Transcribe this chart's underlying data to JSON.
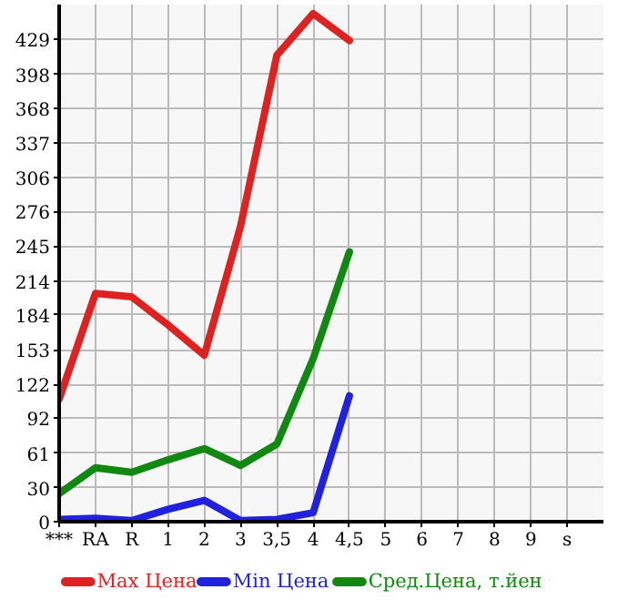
{
  "chart_data": {
    "type": "line",
    "categories": [
      "***",
      "RA",
      "R",
      "1",
      "2",
      "3",
      "3,5",
      "4",
      "4,5",
      "5",
      "6",
      "7",
      "8",
      "9",
      "s"
    ],
    "ylim": [
      0,
      460
    ],
    "yticks": [
      0,
      30,
      61,
      92,
      122,
      153,
      184,
      214,
      245,
      276,
      306,
      337,
      368,
      398,
      429
    ],
    "grid": true,
    "legend": "bottom",
    "line_style": "solid",
    "marker": "none",
    "series": [
      {
        "name": "Max Цена",
        "color": "#dd2222",
        "values": [
          109,
          203,
          200,
          175,
          148,
          263,
          415,
          452,
          428,
          null,
          null,
          null,
          null,
          null,
          null
        ]
      },
      {
        "name": "Min Цена",
        "color": "#2222dd",
        "values": [
          2,
          3,
          1,
          11,
          19,
          1,
          2,
          8,
          112,
          null,
          null,
          null,
          null,
          null,
          null
        ]
      },
      {
        "name": "Сред.Цена, т.йен",
        "color": "#118811",
        "values": [
          25,
          48,
          44,
          55,
          65,
          50,
          69,
          145,
          240,
          null,
          null,
          null,
          null,
          null,
          null
        ]
      }
    ]
  }
}
